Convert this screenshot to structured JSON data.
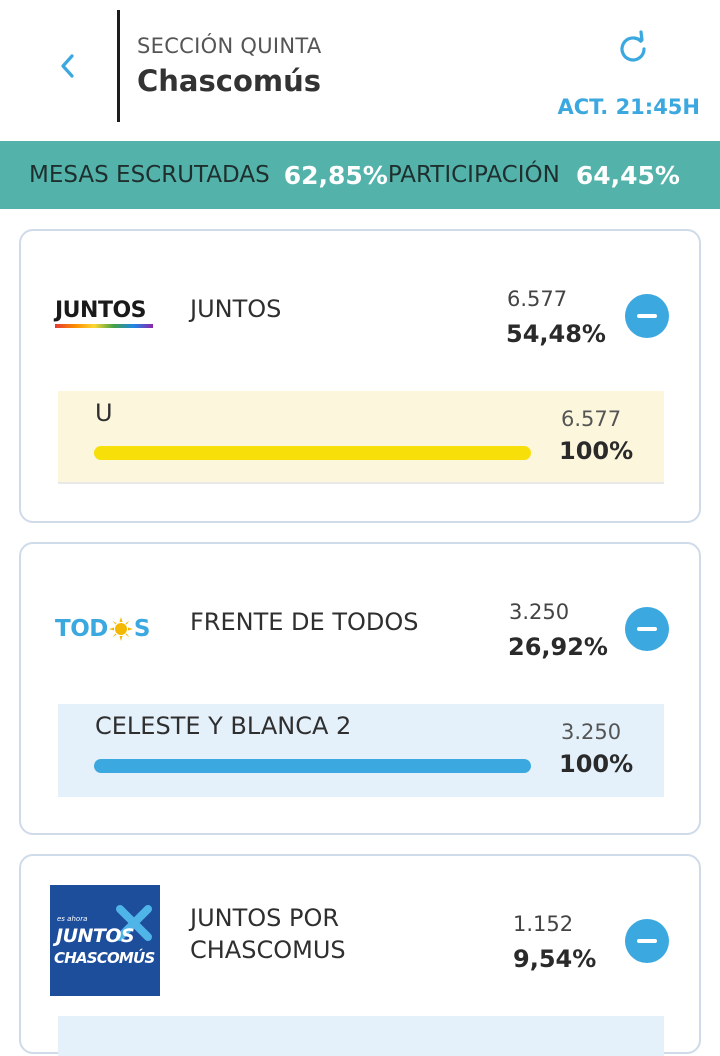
{
  "header": {
    "section": "SECCIÓN QUINTA",
    "place": "Chascomús",
    "updated": "ACT. 21:45H",
    "icons": {
      "back": "chevron-left-icon",
      "refresh": "refresh-icon"
    }
  },
  "stats": {
    "mesas_label": "MESAS ESCRUTADAS",
    "mesas_value": "62,85%",
    "participacion_label": "PARTICIPACIÓN",
    "participacion_value": "64,45%"
  },
  "colors": {
    "accent": "#3ba8df",
    "stats_bar": "#53b3ab",
    "juntos_bar": "#f7df0a",
    "todos_bar": "#3ba8df"
  },
  "parties": [
    {
      "logo_text": "JUNTOS",
      "name": "JUNTOS",
      "votes": "6.577",
      "pct": "54,48%",
      "list": {
        "name": "U",
        "votes": "6.577",
        "pct": "100%",
        "share": 1.0
      }
    },
    {
      "logo_text_a": "TOD",
      "logo_text_b": "S",
      "name": "FRENTE DE TODOS",
      "votes": "3.250",
      "pct": "26,92%",
      "list": {
        "name": "CELESTE Y BLANCA 2",
        "votes": "3.250",
        "pct": "100%",
        "share": 1.0
      }
    },
    {
      "logo_small": "es ahora",
      "logo_line1": "JUNTOS",
      "logo_line2": "CHASCOMÚS",
      "name_line1": "JUNTOS POR",
      "name_line2": "CHASCOMUS",
      "votes": "1.152",
      "pct": "9,54%"
    }
  ]
}
